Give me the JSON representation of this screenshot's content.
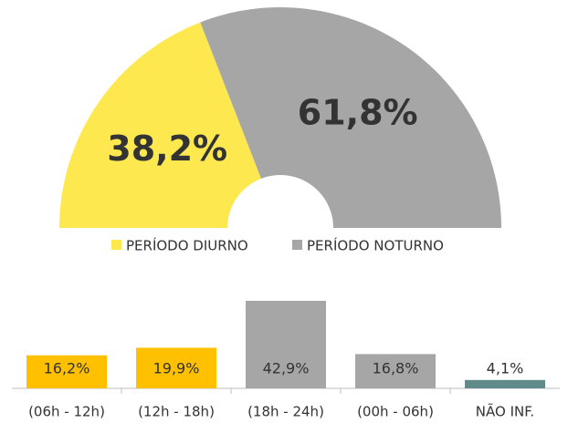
{
  "chart_data": [
    {
      "type": "semidonut",
      "categories": [
        "PERÍODO DIURNO",
        "PERÍODO NOTURNO"
      ],
      "values": [
        38.2,
        61.8
      ],
      "value_labels": [
        "38,2%",
        "61,8%"
      ],
      "colors": [
        "#fde84f",
        "#a6a6a6"
      ]
    },
    {
      "type": "bar",
      "categories": [
        "(06h - 12h)",
        "(12h - 18h)",
        "(18h - 24h)",
        "(00h - 06h)",
        "NÃO INF."
      ],
      "values": [
        16.2,
        19.9,
        42.9,
        16.8,
        4.1
      ],
      "value_labels": [
        "16,2%",
        "19,9%",
        "42,9%",
        "16,8%",
        "4,1%"
      ],
      "colors": [
        "#ffc000",
        "#ffc000",
        "#a6a6a6",
        "#a6a6a6",
        "#5f8b8a"
      ]
    }
  ]
}
